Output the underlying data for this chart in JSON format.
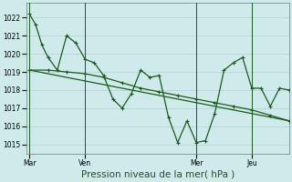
{
  "background_color": "#ceeaea",
  "grid_color": "#add4d4",
  "line_color": "#1a5c1a",
  "xlabel": "Pression niveau de la mer( hPa )",
  "ylabel_values": [
    1015,
    1016,
    1017,
    1018,
    1019,
    1020,
    1021,
    1022
  ],
  "xlabels": [
    "Mar",
    "Ven",
    "Mer",
    "Jeu"
  ],
  "ylim": [
    1014.5,
    1022.8
  ],
  "xlim": [
    -2,
    168
  ],
  "line1_x": [
    0,
    4,
    8,
    12,
    18,
    24,
    30,
    36,
    42,
    48,
    54,
    60,
    66,
    72,
    78,
    84,
    90,
    96,
    102,
    108,
    114,
    120,
    126,
    132,
    138,
    144,
    150,
    156,
    162,
    168
  ],
  "line1_y": [
    1022.2,
    1021.6,
    1020.5,
    1019.8,
    1019.1,
    1021.0,
    1020.6,
    1019.7,
    1019.5,
    1018.8,
    1017.5,
    1017.0,
    1017.8,
    1019.1,
    1018.7,
    1018.8,
    1016.5,
    1015.1,
    1016.3,
    1015.1,
    1015.2,
    1016.7,
    1019.1,
    1019.5,
    1019.8,
    1018.1,
    1018.1,
    1017.1,
    1018.1,
    1018.0
  ],
  "line2_x": [
    0,
    12,
    24,
    36,
    48,
    60,
    72,
    84,
    96,
    108,
    120,
    132,
    144,
    156,
    168
  ],
  "line2_y": [
    1019.1,
    1019.1,
    1019.0,
    1018.9,
    1018.7,
    1018.4,
    1018.1,
    1017.9,
    1017.7,
    1017.5,
    1017.3,
    1017.1,
    1016.9,
    1016.6,
    1016.3
  ],
  "line3_x": [
    0,
    168
  ],
  "line3_y": [
    1019.1,
    1016.3
  ],
  "vline_positions": [
    0,
    36,
    108,
    144
  ],
  "marker_size": 3.5,
  "linewidth": 0.9,
  "tick_fontsize": 5.5,
  "xlabel_fontsize": 7.5
}
